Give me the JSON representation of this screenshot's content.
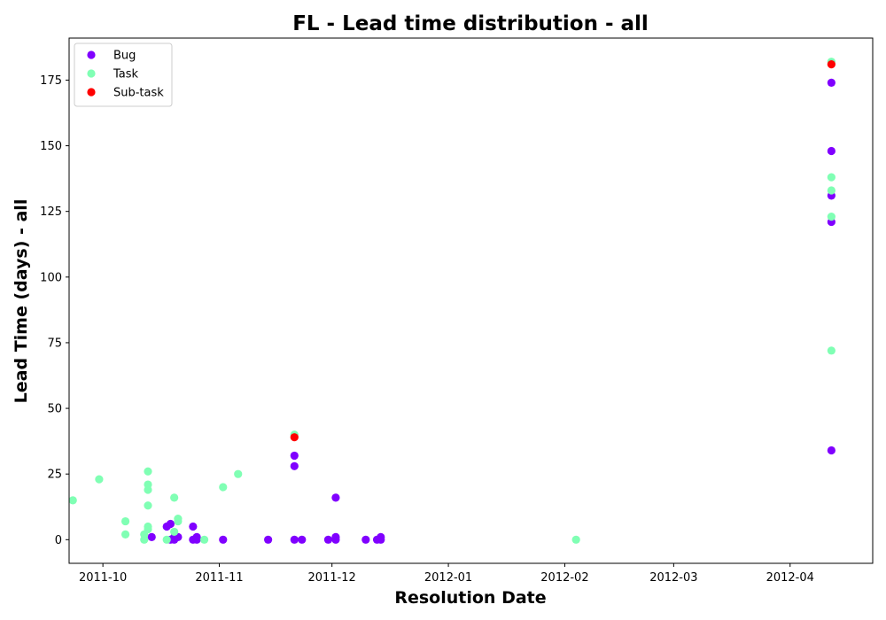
{
  "chart_data": {
    "type": "scatter",
    "title": "FL - Lead time distribution - all",
    "xlabel": "Resolution Date",
    "ylabel": "Lead Time (days) - all",
    "xlim": [
      "2011-09-22",
      "2012-04-23"
    ],
    "ylim": [
      -9,
      191
    ],
    "x_ticks": [
      "2011-10",
      "2011-11",
      "2011-12",
      "2012-01",
      "2012-02",
      "2012-03",
      "2012-04"
    ],
    "y_ticks": [
      0,
      25,
      50,
      75,
      100,
      125,
      150,
      175
    ],
    "grid": false,
    "legend_position": "upper-left",
    "series": [
      {
        "name": "Bug",
        "color": "#8000ff",
        "points": [
          [
            "2011-10-14",
            1
          ],
          [
            "2011-10-18",
            5
          ],
          [
            "2011-10-19",
            6
          ],
          [
            "2011-10-19",
            0
          ],
          [
            "2011-10-20",
            0
          ],
          [
            "2011-10-20",
            1
          ],
          [
            "2011-10-21",
            1
          ],
          [
            "2011-10-25",
            5
          ],
          [
            "2011-10-25",
            0
          ],
          [
            "2011-10-26",
            1
          ],
          [
            "2011-10-26",
            0
          ],
          [
            "2011-11-02",
            0
          ],
          [
            "2011-11-14",
            0
          ],
          [
            "2011-11-21",
            28
          ],
          [
            "2011-11-21",
            32
          ],
          [
            "2011-11-21",
            0
          ],
          [
            "2011-11-23",
            0
          ],
          [
            "2011-11-30",
            0
          ],
          [
            "2011-12-02",
            16
          ],
          [
            "2011-12-02",
            1
          ],
          [
            "2011-12-02",
            0
          ],
          [
            "2011-12-10",
            0
          ],
          [
            "2011-12-13",
            0
          ],
          [
            "2011-12-14",
            1
          ],
          [
            "2011-12-14",
            0
          ],
          [
            "2012-04-12",
            34
          ],
          [
            "2012-04-12",
            121
          ],
          [
            "2012-04-12",
            131
          ],
          [
            "2012-04-12",
            148
          ],
          [
            "2012-04-12",
            174
          ]
        ]
      },
      {
        "name": "Task",
        "color": "#80ffb4",
        "points": [
          [
            "2011-09-23",
            15
          ],
          [
            "2011-09-30",
            23
          ],
          [
            "2011-10-07",
            7
          ],
          [
            "2011-10-07",
            2
          ],
          [
            "2011-10-12",
            2
          ],
          [
            "2011-10-12",
            0
          ],
          [
            "2011-10-13",
            26
          ],
          [
            "2011-10-13",
            21
          ],
          [
            "2011-10-13",
            19
          ],
          [
            "2011-10-13",
            13
          ],
          [
            "2011-10-13",
            5
          ],
          [
            "2011-10-13",
            4
          ],
          [
            "2011-10-18",
            0
          ],
          [
            "2011-10-20",
            16
          ],
          [
            "2011-10-20",
            3
          ],
          [
            "2011-10-21",
            8
          ],
          [
            "2011-10-21",
            7
          ],
          [
            "2011-10-28",
            0
          ],
          [
            "2011-11-02",
            20
          ],
          [
            "2011-11-06",
            25
          ],
          [
            "2011-11-21",
            40
          ],
          [
            "2012-02-04",
            0
          ],
          [
            "2012-04-12",
            72
          ],
          [
            "2012-04-12",
            123
          ],
          [
            "2012-04-12",
            133
          ],
          [
            "2012-04-12",
            138
          ],
          [
            "2012-04-12",
            182
          ]
        ]
      },
      {
        "name": "Sub-task",
        "color": "#ff0000",
        "points": [
          [
            "2011-11-21",
            39
          ],
          [
            "2012-04-12",
            181
          ]
        ]
      }
    ]
  }
}
